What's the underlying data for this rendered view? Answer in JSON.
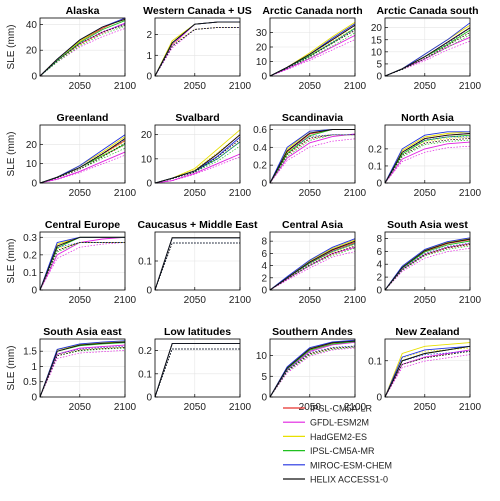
{
  "colors": {
    "IPSL-CM5A-LR": "#e8302c",
    "GFDL-ESM2M": "#e020e0",
    "HadGEM2-ES": "#e8e000",
    "IPSL-CM5A-MR": "#20c020",
    "MIROC-ESM-CHEM": "#2030e0",
    "HELIX ACCESS1-0": "#111111"
  },
  "figure": {
    "x_tick_labels": [
      "2050",
      "2100"
    ],
    "ylabel": "SLE (mm)",
    "legend": [
      "IPSL-CM5A-LR",
      "GFDL-ESM2M",
      "HadGEM2-ES",
      "IPSL-CM5A-MR",
      "MIROC-ESM-CHEM",
      "HELIX ACCESS1-0"
    ]
  },
  "chart_data": [
    {
      "type": "line",
      "title": "Alaska",
      "xlim": [
        2006,
        2100
      ],
      "ylim": [
        0,
        45
      ],
      "yticks": [
        0,
        20,
        40
      ],
      "xlabel": "",
      "ylabel": "SLE (mm)",
      "x": [
        2006,
        2025,
        2050,
        2075,
        2100
      ],
      "series": [
        {
          "values": [
            0,
            13,
            27,
            37,
            45
          ]
        },
        {
          "values": [
            0,
            12,
            25,
            34,
            41
          ]
        },
        {
          "values": [
            0,
            13,
            27,
            38,
            44
          ]
        },
        {
          "values": [
            0,
            12,
            26,
            36,
            43
          ]
        },
        {
          "values": [
            0,
            13,
            28,
            38,
            45
          ]
        },
        {
          "values": [
            0,
            13,
            28,
            38,
            44
          ]
        }
      ]
    },
    {
      "type": "line",
      "title": "Western Canada + US",
      "xlim": [
        2006,
        2100
      ],
      "ylim": [
        0,
        2.8
      ],
      "yticks": [
        0,
        1,
        2
      ],
      "xlabel": "",
      "ylabel": "",
      "x": [
        2006,
        2025,
        2050,
        2075,
        2100
      ],
      "series": [
        {
          "values": [
            0,
            1.6,
            2.5,
            2.6,
            2.6
          ]
        },
        {
          "values": [
            0,
            1.5,
            2.5,
            2.6,
            2.6
          ]
        },
        {
          "values": [
            0,
            1.7,
            2.5,
            2.6,
            2.6
          ]
        },
        {
          "values": [
            0,
            1.6,
            2.5,
            2.6,
            2.6
          ]
        },
        {
          "values": [
            0,
            1.6,
            2.5,
            2.6,
            2.6
          ]
        },
        {
          "values": [
            0,
            1.6,
            2.5,
            2.6,
            2.6
          ]
        }
      ]
    },
    {
      "type": "line",
      "title": "Arctic Canada north",
      "xlim": [
        2006,
        2100
      ],
      "ylim": [
        0,
        40
      ],
      "yticks": [
        0,
        10,
        20,
        30
      ],
      "xlabel": "",
      "ylabel": "",
      "x": [
        2006,
        2025,
        2050,
        2075,
        2100
      ],
      "series": [
        {
          "values": [
            0,
            6,
            15,
            25,
            35
          ]
        },
        {
          "values": [
            0,
            5,
            12,
            20,
            28
          ]
        },
        {
          "values": [
            0,
            6,
            16,
            27,
            37
          ]
        },
        {
          "values": [
            0,
            6,
            14,
            23,
            33
          ]
        },
        {
          "values": [
            0,
            6,
            15,
            26,
            36
          ]
        },
        {
          "values": [
            0,
            6,
            15,
            25,
            35
          ]
        }
      ]
    },
    {
      "type": "line",
      "title": "Arctic Canada south",
      "xlim": [
        2006,
        2100
      ],
      "ylim": [
        0,
        24
      ],
      "yticks": [
        0,
        5,
        10,
        15,
        20
      ],
      "xlabel": "",
      "ylabel": "",
      "x": [
        2006,
        2025,
        2050,
        2075,
        2100
      ],
      "series": [
        {
          "values": [
            0,
            3,
            8,
            14,
            20
          ]
        },
        {
          "values": [
            0,
            3,
            7,
            12,
            16
          ]
        },
        {
          "values": [
            0,
            3,
            9,
            15,
            21
          ]
        },
        {
          "values": [
            0,
            3,
            8,
            13,
            19
          ]
        },
        {
          "values": [
            0,
            3,
            9,
            15,
            22
          ]
        },
        {
          "values": [
            0,
            3,
            8,
            14,
            20
          ]
        }
      ]
    },
    {
      "type": "line",
      "title": "Greenland",
      "xlim": [
        2006,
        2100
      ],
      "ylim": [
        0,
        30
      ],
      "yticks": [
        0,
        10,
        20
      ],
      "xlabel": "",
      "ylabel": "SLE (mm)",
      "x": [
        2006,
        2025,
        2050,
        2075,
        2100
      ],
      "series": [
        {
          "values": [
            0,
            3,
            8,
            15,
            22
          ]
        },
        {
          "values": [
            0,
            2,
            6,
            11,
            16
          ]
        },
        {
          "values": [
            0,
            3,
            9,
            16,
            24
          ]
        },
        {
          "values": [
            0,
            3,
            8,
            14,
            20
          ]
        },
        {
          "values": [
            0,
            3,
            9,
            17,
            25
          ]
        },
        {
          "values": [
            0,
            3,
            8,
            15,
            23
          ]
        }
      ]
    },
    {
      "type": "line",
      "title": "Svalbard",
      "xlim": [
        2006,
        2100
      ],
      "ylim": [
        0,
        24
      ],
      "yticks": [
        0,
        10,
        20
      ],
      "xlabel": "",
      "ylabel": "",
      "x": [
        2006,
        2025,
        2050,
        2075,
        2100
      ],
      "series": [
        {
          "values": [
            0,
            2,
            5,
            12,
            20
          ]
        },
        {
          "values": [
            0,
            1,
            4,
            8,
            12
          ]
        },
        {
          "values": [
            0,
            2,
            6,
            14,
            22
          ]
        },
        {
          "values": [
            0,
            2,
            5,
            10,
            17
          ]
        },
        {
          "values": [
            0,
            2,
            5,
            11,
            19
          ]
        },
        {
          "values": [
            0,
            2,
            5,
            12,
            20
          ]
        }
      ]
    },
    {
      "type": "line",
      "title": "Scandinavia",
      "xlim": [
        2006,
        2100
      ],
      "ylim": [
        0,
        0.65
      ],
      "yticks": [
        0,
        0.2,
        0.4,
        0.6
      ],
      "xlabel": "",
      "ylabel": "",
      "x": [
        2006,
        2025,
        2050,
        2075,
        2100
      ],
      "series": [
        {
          "values": [
            0,
            0.35,
            0.55,
            0.6,
            0.6
          ]
        },
        {
          "values": [
            0,
            0.28,
            0.45,
            0.52,
            0.55
          ]
        },
        {
          "values": [
            0,
            0.38,
            0.58,
            0.6,
            0.6
          ]
        },
        {
          "values": [
            0,
            0.33,
            0.53,
            0.6,
            0.6
          ]
        },
        {
          "values": [
            0,
            0.4,
            0.58,
            0.6,
            0.6
          ]
        },
        {
          "values": [
            0,
            0.36,
            0.56,
            0.6,
            0.6
          ]
        }
      ]
    },
    {
      "type": "line",
      "title": "North Asia",
      "xlim": [
        2006,
        2100
      ],
      "ylim": [
        0,
        0.34
      ],
      "yticks": [
        0,
        0.1,
        0.2
      ],
      "xlabel": "",
      "ylabel": "",
      "x": [
        2006,
        2025,
        2050,
        2075,
        2100
      ],
      "series": [
        {
          "values": [
            0,
            0.18,
            0.26,
            0.28,
            0.29
          ]
        },
        {
          "values": [
            0,
            0.14,
            0.2,
            0.23,
            0.24
          ]
        },
        {
          "values": [
            0,
            0.19,
            0.27,
            0.29,
            0.3
          ]
        },
        {
          "values": [
            0,
            0.17,
            0.25,
            0.27,
            0.28
          ]
        },
        {
          "values": [
            0,
            0.2,
            0.28,
            0.3,
            0.3
          ]
        },
        {
          "values": [
            0,
            0.18,
            0.26,
            0.28,
            0.29
          ]
        }
      ]
    },
    {
      "type": "line",
      "title": "Central Europe",
      "xlim": [
        2006,
        2100
      ],
      "ylim": [
        0,
        0.33
      ],
      "yticks": [
        0,
        0.1,
        0.2,
        0.3
      ],
      "xlabel": "",
      "ylabel": "SLE (mm)",
      "x": [
        2006,
        2025,
        2050,
        2075,
        2100
      ],
      "series": [
        {
          "values": [
            0,
            0.25,
            0.3,
            0.3,
            0.3
          ]
        },
        {
          "values": [
            0,
            0.2,
            0.27,
            0.29,
            0.3
          ]
        },
        {
          "values": [
            0,
            0.26,
            0.3,
            0.3,
            0.3
          ]
        },
        {
          "values": [
            0,
            0.24,
            0.3,
            0.3,
            0.3
          ]
        },
        {
          "values": [
            0,
            0.27,
            0.3,
            0.3,
            0.3
          ]
        },
        {
          "values": [
            0,
            0.25,
            0.3,
            0.3,
            0.3
          ]
        }
      ]
    },
    {
      "type": "line",
      "title": "Caucasus + Middle East",
      "xlim": [
        2006,
        2100
      ],
      "ylim": [
        0,
        0.2
      ],
      "yticks": [
        0,
        0.1
      ],
      "xlabel": "",
      "ylabel": "",
      "x": [
        2006,
        2025,
        2050,
        2075,
        2100
      ],
      "series": [
        {
          "values": [
            0,
            0.18,
            0.18,
            0.18,
            0.18
          ]
        },
        {
          "values": [
            0,
            0.18,
            0.18,
            0.18,
            0.18
          ]
        },
        {
          "values": [
            0,
            0.18,
            0.18,
            0.18,
            0.18
          ]
        },
        {
          "values": [
            0,
            0.18,
            0.18,
            0.18,
            0.18
          ]
        },
        {
          "values": [
            0,
            0.18,
            0.18,
            0.18,
            0.18
          ]
        },
        {
          "values": [
            0,
            0.18,
            0.18,
            0.18,
            0.18
          ]
        }
      ]
    },
    {
      "type": "line",
      "title": "Central Asia",
      "xlim": [
        2006,
        2100
      ],
      "ylim": [
        0,
        9.5
      ],
      "yticks": [
        0,
        2,
        4,
        6,
        8
      ],
      "xlabel": "",
      "ylabel": "",
      "x": [
        2006,
        2025,
        2050,
        2075,
        2100
      ],
      "series": [
        {
          "values": [
            0,
            2,
            4.5,
            6.5,
            7.8
          ]
        },
        {
          "values": [
            0,
            1.8,
            4,
            6,
            7
          ]
        },
        {
          "values": [
            0,
            2.1,
            4.8,
            6.8,
            8.2
          ]
        },
        {
          "values": [
            0,
            2,
            4.4,
            6.3,
            7.6
          ]
        },
        {
          "values": [
            0,
            2.2,
            4.9,
            7,
            8.4
          ]
        },
        {
          "values": [
            0,
            2,
            4.6,
            6.6,
            8
          ]
        }
      ]
    },
    {
      "type": "line",
      "title": "South Asia west",
      "xlim": [
        2006,
        2100
      ],
      "ylim": [
        0,
        9
      ],
      "yticks": [
        0,
        2,
        4,
        6,
        8
      ],
      "xlabel": "",
      "ylabel": "",
      "x": [
        2006,
        2025,
        2050,
        2075,
        2100
      ],
      "series": [
        {
          "values": [
            0,
            3.5,
            6,
            7.2,
            7.8
          ]
        },
        {
          "values": [
            0,
            3.2,
            5.5,
            6.6,
            7.2
          ]
        },
        {
          "values": [
            0,
            3.6,
            6.2,
            7.4,
            8
          ]
        },
        {
          "values": [
            0,
            3.4,
            5.9,
            7,
            7.6
          ]
        },
        {
          "values": [
            0,
            3.7,
            6.3,
            7.5,
            8.1
          ]
        },
        {
          "values": [
            0,
            3.5,
            6.1,
            7.3,
            7.9
          ]
        }
      ]
    },
    {
      "type": "line",
      "title": "South Asia east",
      "xlim": [
        2006,
        2100
      ],
      "ylim": [
        0,
        1.9
      ],
      "yticks": [
        0,
        0.5,
        1,
        1.5
      ],
      "xlabel": "",
      "ylabel": "SLE (mm)",
      "x": [
        2006,
        2025,
        2050,
        2075,
        2100
      ],
      "series": [
        {
          "values": [
            0,
            1.5,
            1.7,
            1.75,
            1.8
          ]
        },
        {
          "values": [
            0,
            1.4,
            1.6,
            1.65,
            1.7
          ]
        },
        {
          "values": [
            0,
            1.55,
            1.72,
            1.78,
            1.82
          ]
        },
        {
          "values": [
            0,
            1.5,
            1.68,
            1.74,
            1.78
          ]
        },
        {
          "values": [
            0,
            1.56,
            1.74,
            1.8,
            1.84
          ]
        },
        {
          "values": [
            0,
            1.5,
            1.7,
            1.76,
            1.8
          ]
        }
      ]
    },
    {
      "type": "line",
      "title": "Low latitudes",
      "xlim": [
        2006,
        2100
      ],
      "ylim": [
        0,
        0.25
      ],
      "yticks": [
        0,
        0.1,
        0.2
      ],
      "xlabel": "",
      "ylabel": "",
      "x": [
        2006,
        2025,
        2050,
        2075,
        2100
      ],
      "series": [
        {
          "values": [
            0,
            0.23,
            0.23,
            0.23,
            0.23
          ]
        },
        {
          "values": [
            0,
            0.23,
            0.23,
            0.23,
            0.23
          ]
        },
        {
          "values": [
            0,
            0.23,
            0.23,
            0.23,
            0.23
          ]
        },
        {
          "values": [
            0,
            0.23,
            0.23,
            0.23,
            0.23
          ]
        },
        {
          "values": [
            0,
            0.23,
            0.23,
            0.23,
            0.23
          ]
        },
        {
          "values": [
            0,
            0.23,
            0.23,
            0.23,
            0.23
          ]
        }
      ]
    },
    {
      "type": "line",
      "title": "Southern Andes",
      "xlim": [
        2006,
        2100
      ],
      "ylim": [
        0,
        14
      ],
      "yticks": [
        0,
        5,
        10
      ],
      "xlabel": "",
      "ylabel": "",
      "x": [
        2006,
        2025,
        2050,
        2075,
        2100
      ],
      "series": [
        {
          "values": [
            0,
            7,
            11.5,
            13,
            13.5
          ]
        },
        {
          "values": [
            0,
            6.5,
            11,
            12.6,
            13.2
          ]
        },
        {
          "values": [
            0,
            7.2,
            11.8,
            13.2,
            13.6
          ]
        },
        {
          "values": [
            0,
            6.8,
            11.3,
            12.8,
            13.4
          ]
        },
        {
          "values": [
            0,
            7.3,
            11.9,
            13.3,
            13.7
          ]
        },
        {
          "values": [
            0,
            7,
            11.6,
            13.1,
            13.5
          ]
        }
      ]
    },
    {
      "type": "line",
      "title": "New Zealand",
      "xlim": [
        2006,
        2100
      ],
      "ylim": [
        0,
        0.16
      ],
      "yticks": [
        0,
        0.1
      ],
      "xlabel": "",
      "ylabel": "",
      "x": [
        2006,
        2025,
        2050,
        2075,
        2100
      ],
      "series": [
        {
          "values": [
            0,
            0.1,
            0.12,
            0.13,
            0.14
          ]
        },
        {
          "values": [
            0,
            0.09,
            0.11,
            0.12,
            0.13
          ]
        },
        {
          "values": [
            0,
            0.12,
            0.14,
            0.145,
            0.15
          ]
        },
        {
          "values": [
            0,
            0.1,
            0.12,
            0.13,
            0.14
          ]
        },
        {
          "values": [
            0,
            0.11,
            0.13,
            0.135,
            0.14
          ]
        },
        {
          "values": [
            0,
            0.1,
            0.12,
            0.13,
            0.14
          ]
        }
      ]
    }
  ]
}
